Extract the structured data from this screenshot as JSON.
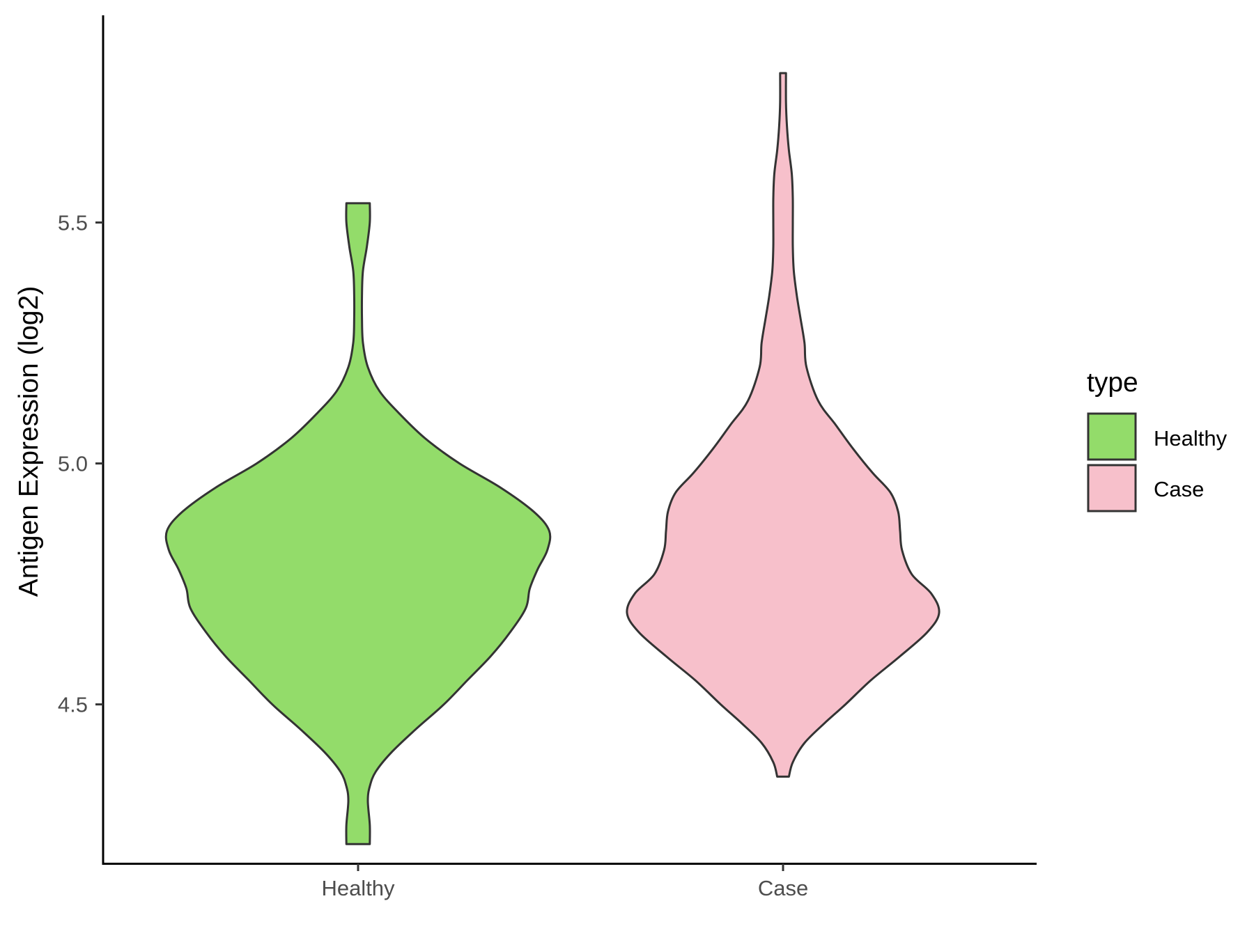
{
  "chart_data": {
    "type": "violin",
    "ylabel": "Antigen Expression (log2)",
    "xlabel": "",
    "categories": [
      "Healthy",
      "Case"
    ],
    "yticks": [
      4.5,
      5.0,
      5.5
    ],
    "ytick_labels": [
      "4.5",
      "5.0",
      "5.5"
    ],
    "ylim": [
      4.17,
      5.93
    ],
    "legend": {
      "title": "type",
      "position": "right",
      "entries": [
        {
          "label": "Healthy",
          "color": "#93DC6A"
        },
        {
          "label": "Case",
          "color": "#F7C0CB"
        }
      ]
    },
    "series": [
      {
        "name": "Healthy",
        "color": "#93DC6A",
        "min": 4.21,
        "max": 5.54,
        "density": [
          [
            4.21,
            0.06
          ],
          [
            4.25,
            0.06
          ],
          [
            4.3,
            0.05
          ],
          [
            4.33,
            0.06
          ],
          [
            4.36,
            0.09
          ],
          [
            4.4,
            0.17
          ],
          [
            4.45,
            0.3
          ],
          [
            4.5,
            0.44
          ],
          [
            4.55,
            0.56
          ],
          [
            4.6,
            0.68
          ],
          [
            4.65,
            0.78
          ],
          [
            4.7,
            0.86
          ],
          [
            4.74,
            0.88
          ],
          [
            4.78,
            0.92
          ],
          [
            4.82,
            0.97
          ],
          [
            4.86,
            0.98
          ],
          [
            4.9,
            0.9
          ],
          [
            4.95,
            0.73
          ],
          [
            5.0,
            0.52
          ],
          [
            5.05,
            0.35
          ],
          [
            5.1,
            0.22
          ],
          [
            5.15,
            0.11
          ],
          [
            5.2,
            0.05
          ],
          [
            5.25,
            0.025
          ],
          [
            5.3,
            0.02
          ],
          [
            5.35,
            0.02
          ],
          [
            5.4,
            0.025
          ],
          [
            5.45,
            0.045
          ],
          [
            5.5,
            0.06
          ],
          [
            5.54,
            0.06
          ]
        ]
      },
      {
        "name": "Case",
        "color": "#F7C0CB",
        "min": 4.35,
        "max": 5.81,
        "density": [
          [
            4.35,
            0.03
          ],
          [
            4.38,
            0.05
          ],
          [
            4.42,
            0.11
          ],
          [
            4.46,
            0.21
          ],
          [
            4.5,
            0.32
          ],
          [
            4.55,
            0.45
          ],
          [
            4.6,
            0.6
          ],
          [
            4.65,
            0.74
          ],
          [
            4.69,
            0.8
          ],
          [
            4.73,
            0.76
          ],
          [
            4.77,
            0.66
          ],
          [
            4.82,
            0.61
          ],
          [
            4.86,
            0.6
          ],
          [
            4.9,
            0.59
          ],
          [
            4.94,
            0.55
          ],
          [
            4.98,
            0.46
          ],
          [
            5.03,
            0.36
          ],
          [
            5.08,
            0.27
          ],
          [
            5.13,
            0.18
          ],
          [
            5.2,
            0.12
          ],
          [
            5.25,
            0.11
          ],
          [
            5.3,
            0.09
          ],
          [
            5.35,
            0.07
          ],
          [
            5.4,
            0.055
          ],
          [
            5.45,
            0.05
          ],
          [
            5.5,
            0.05
          ],
          [
            5.55,
            0.05
          ],
          [
            5.6,
            0.045
          ],
          [
            5.65,
            0.03
          ],
          [
            5.7,
            0.02
          ],
          [
            5.75,
            0.015
          ],
          [
            5.81,
            0.015
          ]
        ]
      }
    ]
  }
}
